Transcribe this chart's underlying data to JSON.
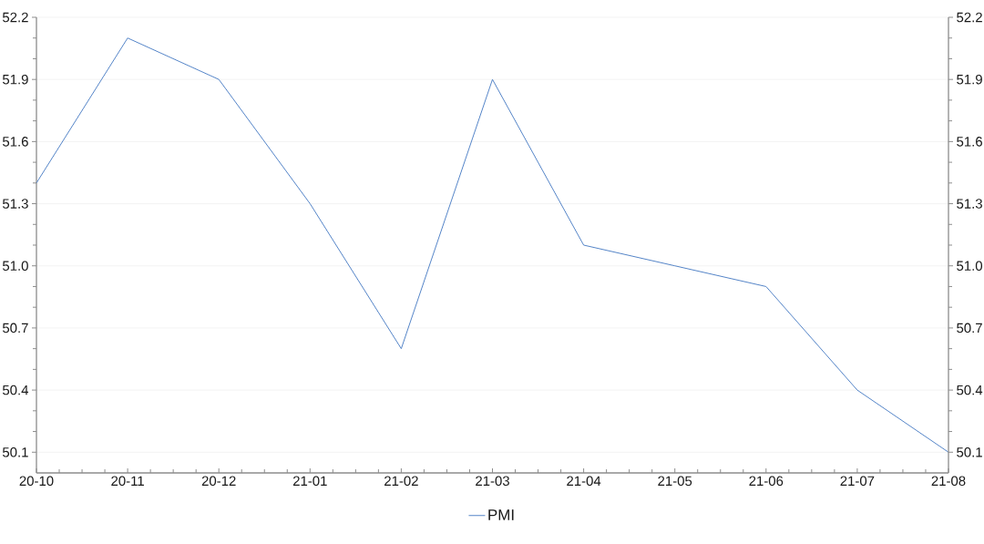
{
  "chart_data": {
    "type": "line",
    "categories": [
      "20-10",
      "20-11",
      "20-12",
      "21-01",
      "21-02",
      "21-03",
      "21-04",
      "21-05",
      "21-06",
      "21-07",
      "21-08"
    ],
    "series": [
      {
        "name": "PMI",
        "color": "#5585c8",
        "values": [
          51.4,
          52.1,
          51.9,
          51.3,
          50.6,
          51.9,
          51.1,
          51.0,
          50.9,
          50.4,
          50.1
        ]
      }
    ],
    "ylim": [
      50.0,
      52.2
    ],
    "yticks": [
      50.1,
      50.4,
      50.7,
      {
        "value": 51.0,
        "label": "51.0"
      },
      51.3,
      51.6,
      51.9,
      52.2
    ],
    "y2lim": [
      50.0,
      52.2
    ],
    "y2ticks": [
      50.1,
      50.4,
      50.7,
      {
        "value": 51.0,
        "label": "51.0"
      },
      51.3,
      51.6,
      51.9,
      52.2
    ],
    "grid": "y",
    "legend": "bottom"
  }
}
